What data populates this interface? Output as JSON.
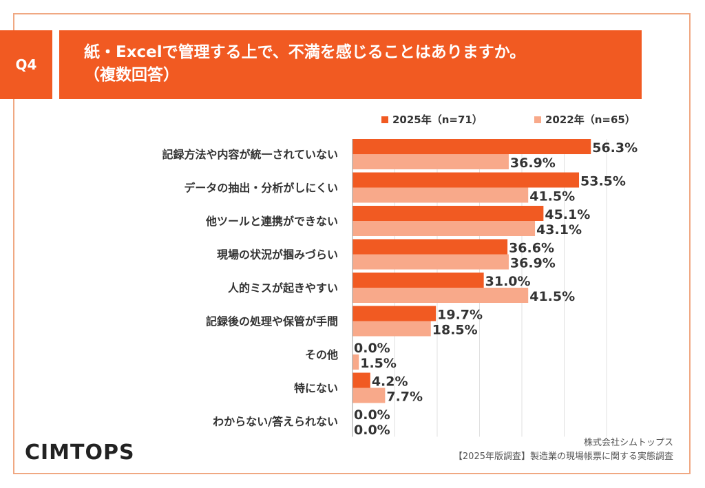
{
  "badge": "Q4",
  "title": {
    "line1": "紙・Excelで管理する上で、不満を感じることはありますか。",
    "line2": "（複数回答）"
  },
  "legend": {
    "items": [
      {
        "label": "2025年（n=71）",
        "color": "#f15a22"
      },
      {
        "label": "2022年（n=65）",
        "color": "#f8a98a"
      }
    ]
  },
  "chart_data": {
    "type": "bar",
    "orientation": "horizontal",
    "categories": [
      "記録方法や内容が統一されていない",
      "データの抽出・分析がしにくい",
      "他ツールと連携ができない",
      "現場の状況が掴みづらい",
      "人的ミスが起きやすい",
      "記録後の処理や保管が手間",
      "その他",
      "特にない",
      "わからない/答えられない"
    ],
    "series": [
      {
        "name": "2025年（n=71）",
        "color": "#f15a22",
        "values": [
          56.3,
          53.5,
          45.1,
          36.6,
          31.0,
          19.7,
          0.0,
          4.2,
          0.0
        ]
      },
      {
        "name": "2022年（n=65）",
        "color": "#f8a98a",
        "values": [
          36.9,
          41.5,
          43.1,
          36.9,
          41.5,
          18.5,
          1.5,
          7.7,
          0.0
        ]
      }
    ],
    "value_suffix": "%",
    "xlim": [
      0,
      60
    ],
    "grid": true,
    "legend_position": "top-right"
  },
  "brand": "CIMTOPS",
  "credit": {
    "company": "株式会社シムトップス",
    "survey": "【2025年版調査】製造業の現場帳票に関する実態調査"
  }
}
